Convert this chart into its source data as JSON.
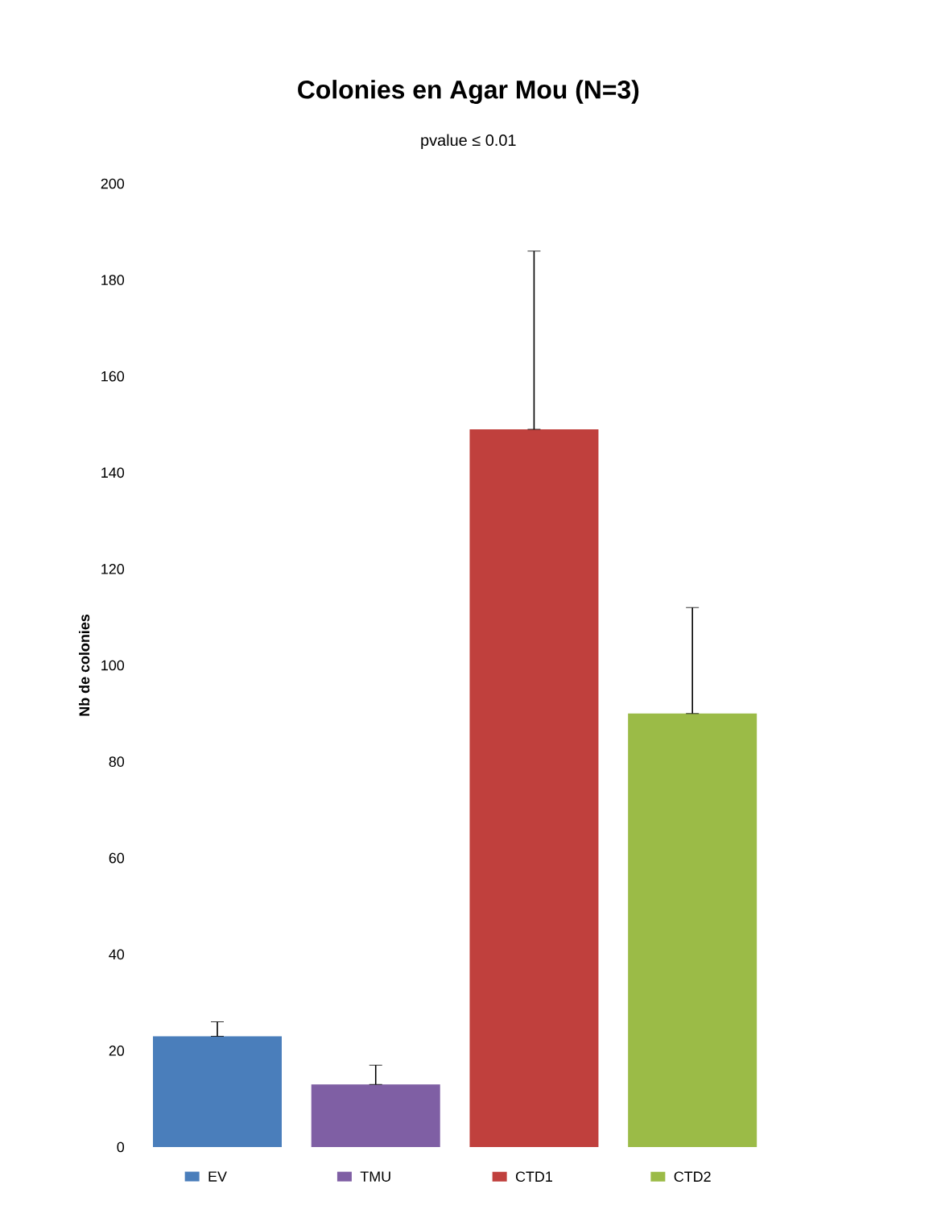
{
  "chart_data": {
    "type": "bar",
    "title": "Colonies en Agar Mou (N=3)",
    "ylabel": "Nb de colonies",
    "categories": [
      "EV",
      "TMU",
      "CTD1",
      "CTD2"
    ],
    "values": [
      23,
      13,
      149,
      90
    ],
    "colors": [
      "#4a7ebb",
      "#7f5fa4",
      "#c0403d",
      "#9bbb47"
    ],
    "errors": [
      [
        23,
        26
      ],
      [
        13,
        17
      ],
      [
        149,
        186
      ],
      [
        90,
        112
      ]
    ],
    "ylim": [
      0,
      200
    ],
    "yticks": [
      0,
      20,
      40,
      60,
      80,
      100,
      120,
      140,
      160,
      180,
      200
    ],
    "annotations": [
      "pvalue ≤ 0.01"
    ],
    "tick_labels": "y",
    "grid": false
  }
}
